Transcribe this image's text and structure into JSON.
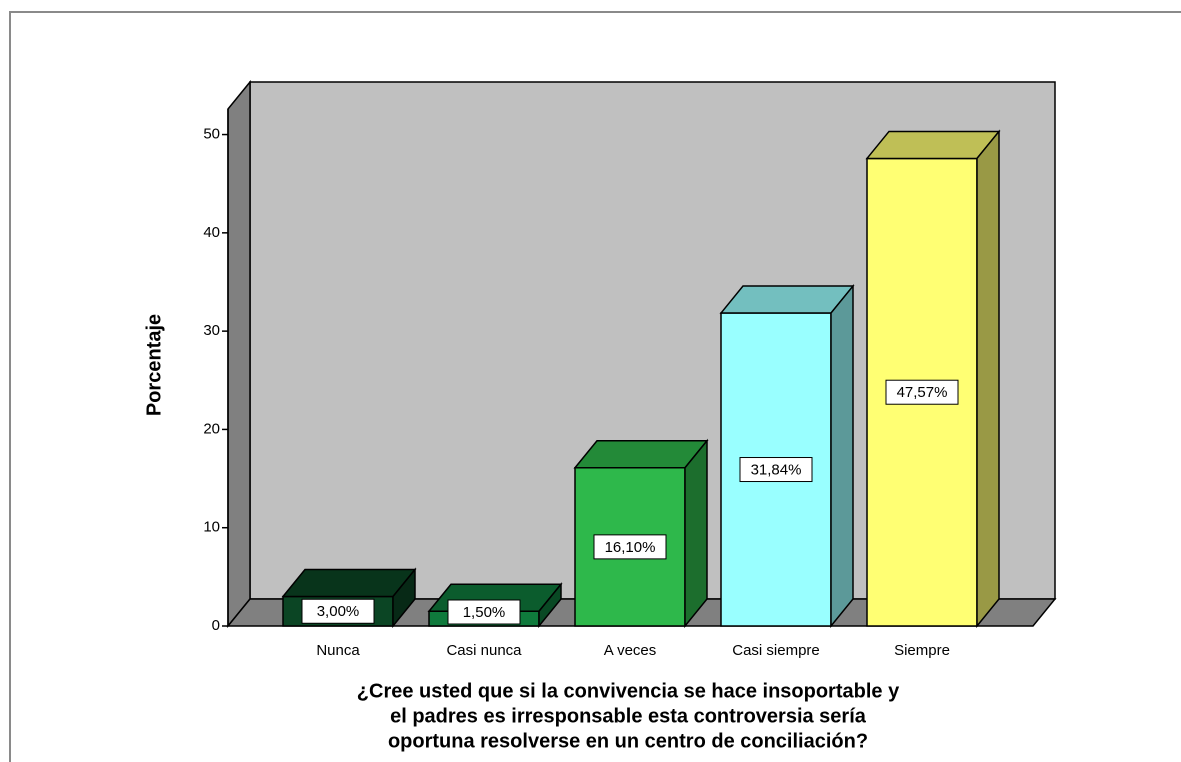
{
  "chart_data": {
    "type": "bar",
    "y_label": "Porcentaje",
    "x_label": [
      "¿Cree usted que si la convivencia se hace insoportable y",
      "el padres es irresponsable esta controversia sería",
      "oportuna resolverse en un centro de conciliación?"
    ],
    "categories": [
      "Nunca",
      "Casi nunca",
      "A veces",
      "Casi siempre",
      "Siempre"
    ],
    "values": [
      3.0,
      1.5,
      16.1,
      31.84,
      47.57
    ],
    "value_labels": [
      "3,00%",
      "1,50%",
      "16,10%",
      "31,84%",
      "47,57%"
    ],
    "colors": [
      "#0b4524",
      "#0f7a3c",
      "#2eb84b",
      "#99ffff",
      "#ffff73"
    ],
    "ylim": [
      0,
      52.6
    ],
    "yticks": [
      0,
      10,
      20,
      30,
      40,
      50
    ]
  }
}
